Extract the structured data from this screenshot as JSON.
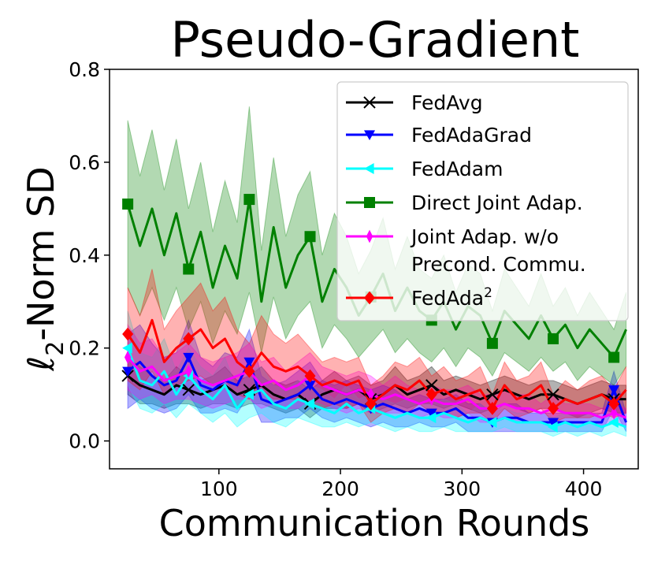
{
  "chart_data": {
    "type": "line",
    "title": "Pseudo-Gradient",
    "xlabel": "Communication Rounds",
    "ylabel_main": "ℓ",
    "ylabel_sub": "2",
    "ylabel_rest": "-Norm SD",
    "xlim": [
      10,
      445
    ],
    "ylim": [
      -0.06,
      0.8
    ],
    "xticks": [
      100,
      200,
      300,
      400
    ],
    "yticks": [
      0.0,
      0.2,
      0.4,
      0.6,
      0.8
    ],
    "ytick_labels": [
      "0.0",
      "0.2",
      "0.4",
      "0.6",
      "0.8"
    ],
    "grid": false,
    "legend_position": "top-right",
    "x": [
      25,
      35,
      45,
      55,
      65,
      75,
      85,
      95,
      105,
      115,
      125,
      135,
      145,
      155,
      165,
      175,
      185,
      195,
      205,
      215,
      225,
      235,
      245,
      255,
      265,
      275,
      285,
      295,
      305,
      315,
      325,
      335,
      345,
      355,
      365,
      375,
      385,
      395,
      405,
      415,
      425,
      435
    ],
    "series": [
      {
        "name": "FedAvg",
        "color": "#000000",
        "marker": "x",
        "values": [
          0.14,
          0.12,
          0.11,
          0.1,
          0.12,
          0.11,
          0.1,
          0.11,
          0.12,
          0.1,
          0.11,
          0.12,
          0.1,
          0.09,
          0.1,
          0.08,
          0.1,
          0.11,
          0.1,
          0.11,
          0.09,
          0.1,
          0.12,
          0.1,
          0.11,
          0.12,
          0.1,
          0.11,
          0.1,
          0.09,
          0.1,
          0.11,
          0.1,
          0.09,
          0.1,
          0.1,
          0.09,
          0.08,
          0.09,
          0.1,
          0.09,
          0.09
        ],
        "band": [
          0.04,
          0.04,
          0.03,
          0.03,
          0.04,
          0.03,
          0.03,
          0.03,
          0.04,
          0.03,
          0.03,
          0.04,
          0.03,
          0.03,
          0.03,
          0.03,
          0.03,
          0.04,
          0.03,
          0.03,
          0.03,
          0.03,
          0.04,
          0.03,
          0.03,
          0.04,
          0.03,
          0.03,
          0.03,
          0.03,
          0.03,
          0.03,
          0.03,
          0.03,
          0.03,
          0.03,
          0.03,
          0.03,
          0.03,
          0.03,
          0.03,
          0.03
        ]
      },
      {
        "name": "FedAdaGrad",
        "color": "#0000ff",
        "marker": "triangle-down",
        "values": [
          0.15,
          0.17,
          0.14,
          0.12,
          0.13,
          0.18,
          0.12,
          0.11,
          0.13,
          0.12,
          0.17,
          0.09,
          0.08,
          0.09,
          0.1,
          0.12,
          0.09,
          0.08,
          0.09,
          0.08,
          0.07,
          0.08,
          0.07,
          0.06,
          0.07,
          0.06,
          0.06,
          0.07,
          0.05,
          0.05,
          0.04,
          0.05,
          0.05,
          0.04,
          0.04,
          0.04,
          0.04,
          0.04,
          0.04,
          0.04,
          0.11,
          0.04
        ],
        "band": [
          0.08,
          0.08,
          0.07,
          0.06,
          0.06,
          0.08,
          0.06,
          0.05,
          0.06,
          0.06,
          0.07,
          0.05,
          0.04,
          0.04,
          0.05,
          0.05,
          0.04,
          0.04,
          0.04,
          0.04,
          0.04,
          0.04,
          0.04,
          0.03,
          0.03,
          0.03,
          0.03,
          0.03,
          0.03,
          0.03,
          0.02,
          0.03,
          0.03,
          0.02,
          0.02,
          0.02,
          0.02,
          0.02,
          0.02,
          0.02,
          0.04,
          0.02
        ]
      },
      {
        "name": "FedAdam",
        "color": "#00ffff",
        "marker": "triangle-left",
        "values": [
          0.2,
          0.13,
          0.12,
          0.15,
          0.1,
          0.14,
          0.11,
          0.09,
          0.12,
          0.07,
          0.1,
          0.11,
          0.08,
          0.07,
          0.09,
          0.08,
          0.07,
          0.06,
          0.08,
          0.06,
          0.07,
          0.06,
          0.05,
          0.06,
          0.05,
          0.05,
          0.06,
          0.05,
          0.04,
          0.05,
          0.04,
          0.05,
          0.04,
          0.04,
          0.04,
          0.03,
          0.04,
          0.03,
          0.04,
          0.03,
          0.04,
          0.03
        ],
        "band": [
          0.08,
          0.06,
          0.06,
          0.07,
          0.05,
          0.06,
          0.05,
          0.05,
          0.06,
          0.04,
          0.05,
          0.05,
          0.04,
          0.04,
          0.04,
          0.04,
          0.04,
          0.03,
          0.04,
          0.03,
          0.03,
          0.03,
          0.03,
          0.03,
          0.03,
          0.03,
          0.03,
          0.03,
          0.02,
          0.03,
          0.02,
          0.02,
          0.02,
          0.02,
          0.02,
          0.02,
          0.02,
          0.02,
          0.02,
          0.02,
          0.02,
          0.02
        ]
      },
      {
        "name": "Direct Joint Adap.",
        "color": "#008000",
        "marker": "square",
        "values": [
          0.51,
          0.42,
          0.5,
          0.4,
          0.49,
          0.37,
          0.45,
          0.33,
          0.42,
          0.35,
          0.52,
          0.3,
          0.46,
          0.33,
          0.4,
          0.44,
          0.3,
          0.37,
          0.33,
          0.27,
          0.31,
          0.36,
          0.28,
          0.33,
          0.28,
          0.26,
          0.3,
          0.24,
          0.29,
          0.27,
          0.21,
          0.28,
          0.25,
          0.22,
          0.27,
          0.22,
          0.25,
          0.2,
          0.24,
          0.21,
          0.18,
          0.24
        ],
        "band": [
          0.18,
          0.15,
          0.17,
          0.14,
          0.16,
          0.13,
          0.15,
          0.12,
          0.14,
          0.12,
          0.2,
          0.11,
          0.15,
          0.11,
          0.13,
          0.14,
          0.1,
          0.12,
          0.11,
          0.09,
          0.1,
          0.12,
          0.09,
          0.11,
          0.09,
          0.09,
          0.1,
          0.08,
          0.09,
          0.09,
          0.07,
          0.09,
          0.08,
          0.07,
          0.09,
          0.07,
          0.08,
          0.07,
          0.08,
          0.07,
          0.06,
          0.08
        ]
      },
      {
        "name": "Joint Adap. w/o Precond. Commu.",
        "label_lines": [
          "Joint Adap. w/o",
          "Precond. Commu."
        ],
        "color": "#ff00ff",
        "marker": "thin-diamond",
        "values": [
          0.18,
          0.15,
          0.16,
          0.13,
          0.14,
          0.15,
          0.13,
          0.12,
          0.13,
          0.14,
          0.15,
          0.12,
          0.13,
          0.11,
          0.12,
          0.14,
          0.12,
          0.11,
          0.1,
          0.11,
          0.1,
          0.09,
          0.1,
          0.09,
          0.08,
          0.09,
          0.08,
          0.08,
          0.09,
          0.07,
          0.07,
          0.08,
          0.07,
          0.07,
          0.06,
          0.07,
          0.06,
          0.06,
          0.06,
          0.05,
          0.06,
          0.05
        ],
        "band": [
          0.07,
          0.06,
          0.06,
          0.05,
          0.05,
          0.06,
          0.05,
          0.05,
          0.05,
          0.05,
          0.06,
          0.05,
          0.05,
          0.04,
          0.05,
          0.05,
          0.04,
          0.04,
          0.04,
          0.04,
          0.04,
          0.03,
          0.04,
          0.03,
          0.03,
          0.03,
          0.03,
          0.03,
          0.03,
          0.03,
          0.03,
          0.03,
          0.03,
          0.03,
          0.02,
          0.03,
          0.02,
          0.02,
          0.02,
          0.02,
          0.02,
          0.02
        ]
      },
      {
        "name": "FedAda²",
        "label_base": "FedAda",
        "label_sup": "2",
        "color": "#ff0000",
        "marker": "diamond",
        "values": [
          0.23,
          0.19,
          0.26,
          0.17,
          0.2,
          0.22,
          0.24,
          0.2,
          0.22,
          0.17,
          0.15,
          0.19,
          0.16,
          0.15,
          0.16,
          0.14,
          0.12,
          0.13,
          0.12,
          0.13,
          0.08,
          0.1,
          0.12,
          0.11,
          0.13,
          0.1,
          0.11,
          0.09,
          0.1,
          0.11,
          0.07,
          0.12,
          0.09,
          0.1,
          0.12,
          0.07,
          0.09,
          0.08,
          0.09,
          0.1,
          0.08,
          0.11
        ],
        "band": [
          0.1,
          0.08,
          0.11,
          0.07,
          0.08,
          0.09,
          0.1,
          0.08,
          0.09,
          0.07,
          0.06,
          0.08,
          0.07,
          0.06,
          0.07,
          0.06,
          0.05,
          0.05,
          0.05,
          0.05,
          0.04,
          0.04,
          0.05,
          0.05,
          0.05,
          0.04,
          0.05,
          0.04,
          0.04,
          0.05,
          0.03,
          0.05,
          0.04,
          0.04,
          0.05,
          0.03,
          0.04,
          0.03,
          0.04,
          0.04,
          0.03,
          0.05
        ]
      }
    ]
  }
}
